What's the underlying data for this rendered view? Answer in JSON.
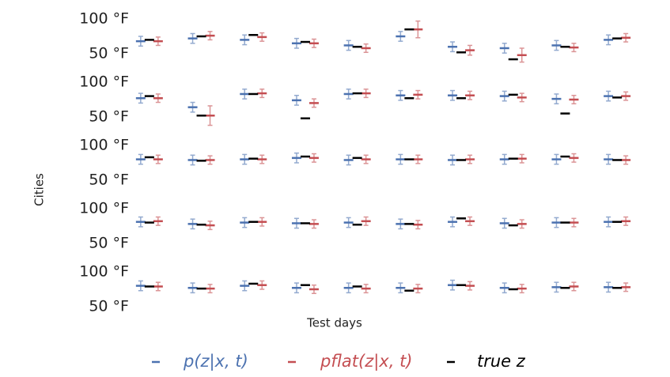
{
  "chart_data": {
    "type": "errorbar",
    "xlabel": "Test days",
    "ylabel": "Cities",
    "categories": [
      null,
      null,
      null,
      null,
      null,
      null,
      null,
      null,
      null,
      null
    ],
    "series": [
      {
        "name": "p(z|x, t)",
        "color": "#4c72b0"
      },
      {
        "name": "pflat(z|x, t)",
        "color": "#c44e52"
      },
      {
        "name": "true z",
        "color": "#000000"
      }
    ],
    "panels": [
      {
        "ylim": [
          40,
          110
        ],
        "yticks": [
          {
            "value": 100,
            "label": "100 °F"
          },
          {
            "value": 50,
            "label": "50 °F"
          }
        ],
        "series": [
          {
            "values": [
              68,
              72,
              70,
              65,
              62,
              75,
              60,
              58,
              62,
              70
            ],
            "errors": [
              7,
              7,
              7,
              7,
              7,
              7,
              7,
              7,
              7,
              7
            ]
          },
          {
            "values": [
              68,
              76,
              74,
              65,
              58,
              85,
              55,
              48,
              59,
              73
            ],
            "errors": [
              6,
              6,
              6,
              6,
              6,
              12,
              7,
              10,
              6,
              6
            ]
          },
          {
            "values": [
              70,
              75,
              77,
              67,
              60,
              85,
              52,
              42,
              60,
              72
            ]
          }
        ]
      },
      {
        "ylim": [
          40,
          110
        ],
        "yticks": [
          {
            "value": 100,
            "label": "100 °F"
          },
          {
            "value": 50,
            "label": "50 °F"
          }
        ],
        "series": [
          {
            "values": [
              77,
              64,
              83,
              74,
              83,
              81,
              81,
              80,
              76,
              80
            ],
            "errors": [
              7,
              7,
              7,
              7,
              7,
              7,
              7,
              7,
              7,
              7
            ]
          },
          {
            "values": [
              77,
              52,
              84,
              70,
              84,
              82,
              81,
              78,
              75,
              80
            ],
            "errors": [
              6,
              14,
              6,
              6,
              6,
              6,
              6,
              6,
              6,
              6
            ]
          },
          {
            "values": [
              80,
              52,
              83,
              48,
              84,
              77,
              77,
              82,
              55,
              78
            ]
          }
        ]
      },
      {
        "ylim": [
          40,
          110
        ],
        "yticks": [
          {
            "value": 100,
            "label": "100 °F"
          },
          {
            "value": 50,
            "label": "50 °F"
          }
        ],
        "series": [
          {
            "values": [
              80,
              79,
              80,
              82,
              79,
              80,
              79,
              80,
              80,
              80
            ],
            "errors": [
              7,
              7,
              7,
              7,
              7,
              7,
              7,
              7,
              7,
              7
            ]
          },
          {
            "values": [
              80,
              79,
              80,
              82,
              80,
              80,
              80,
              81,
              82,
              79
            ],
            "errors": [
              6,
              6,
              6,
              6,
              6,
              6,
              6,
              6,
              6,
              6
            ]
          },
          {
            "values": [
              83,
              78,
              81,
              84,
              82,
              80,
              79,
              81,
              84,
              79
            ]
          }
        ]
      },
      {
        "ylim": [
          40,
          110
        ],
        "yticks": [
          {
            "value": 100,
            "label": "100 °F"
          },
          {
            "value": 50,
            "label": "50 °F"
          }
        ],
        "series": [
          {
            "values": [
              81,
              78,
              80,
              79,
              80,
              78,
              81,
              79,
              80,
              81
            ],
            "errors": [
              7,
              7,
              7,
              7,
              7,
              7,
              7,
              7,
              7,
              7
            ]
          },
          {
            "values": [
              82,
              76,
              81,
              78,
              82,
              77,
              82,
              78,
              80,
              82
            ],
            "errors": [
              6,
              6,
              6,
              6,
              6,
              6,
              6,
              6,
              6,
              6
            ]
          },
          {
            "values": [
              80,
              77,
              81,
              79,
              77,
              78,
              86,
              76,
              80,
              81
            ]
          }
        ]
      },
      {
        "ylim": [
          40,
          110
        ],
        "yticks": [
          {
            "value": 100,
            "label": "100 °F"
          },
          {
            "value": 50,
            "label": "50 °F"
          }
        ],
        "series": [
          {
            "values": [
              80,
              77,
              80,
              77,
              77,
              77,
              81,
              77,
              78,
              78
            ],
            "errors": [
              7,
              7,
              7,
              7,
              7,
              7,
              7,
              7,
              7,
              7
            ]
          },
          {
            "values": [
              79,
              76,
              81,
              75,
              76,
              76,
              80,
              76,
              79,
              78
            ],
            "errors": [
              6,
              6,
              6,
              6,
              6,
              6,
              6,
              6,
              6,
              6
            ]
          },
          {
            "values": [
              79,
              76,
              83,
              81,
              79,
              73,
              81,
              75,
              77,
              77
            ]
          }
        ]
      }
    ]
  }
}
